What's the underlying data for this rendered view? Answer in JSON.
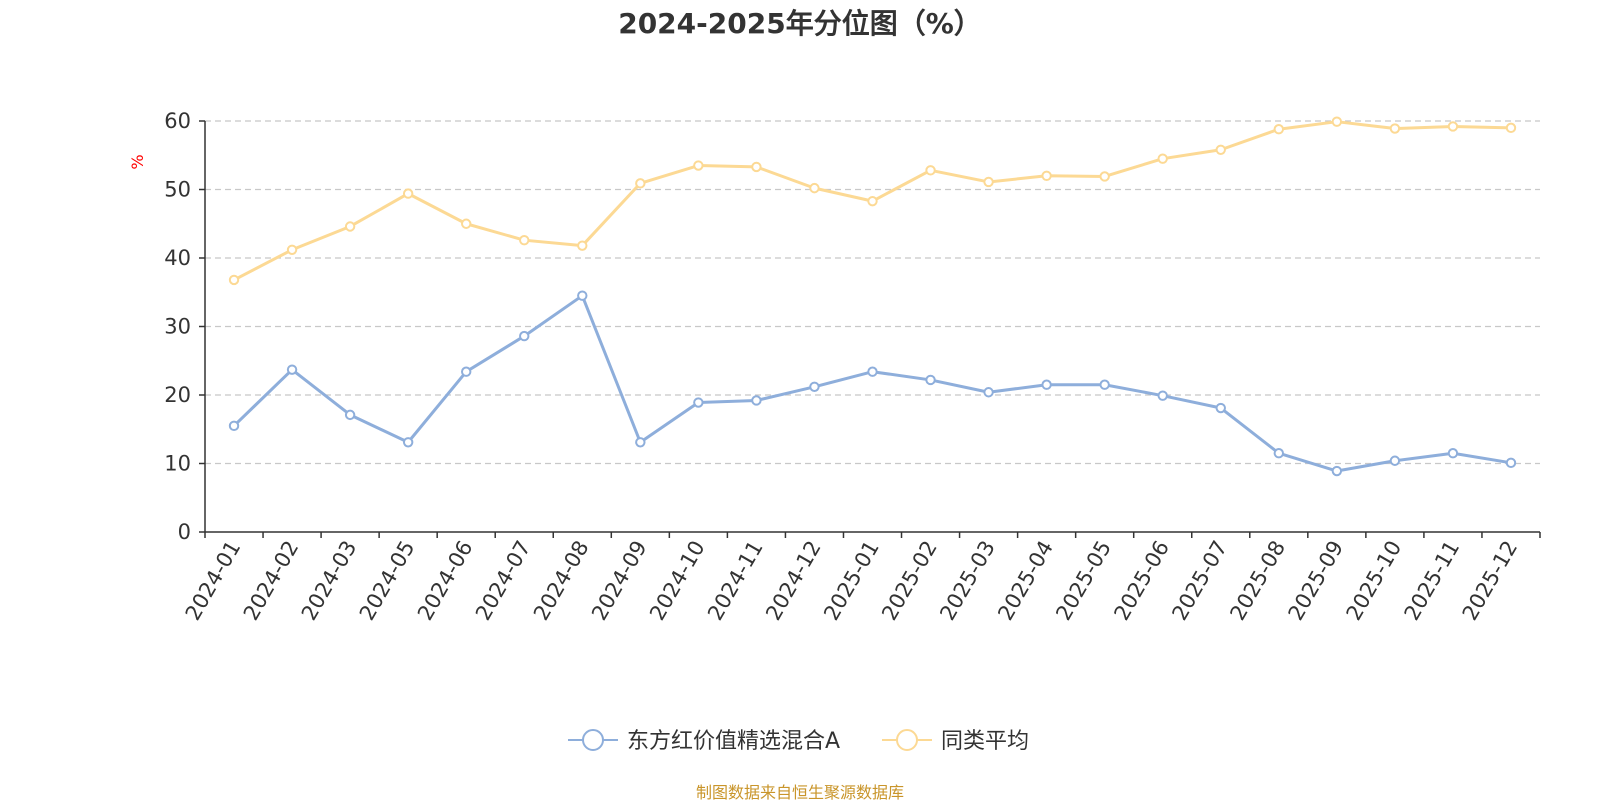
{
  "chart_data": {
    "type": "line",
    "title": "2024-2025年分位图（%）",
    "ylabel": "%",
    "xlabel": "",
    "ylim": [
      0,
      60
    ],
    "yticks": [
      0,
      10,
      20,
      30,
      40,
      50,
      60
    ],
    "grid": true,
    "legend_position": "bottom-center",
    "categories": [
      "2024-01",
      "2024-02",
      "2024-03",
      "2024-05",
      "2024-06",
      "2024-07",
      "2024-08",
      "2024-09",
      "2024-10",
      "2024-11",
      "2024-12",
      "2025-01",
      "2025-02",
      "2025-03",
      "2025-04",
      "2025-05",
      "2025-06",
      "2025-07",
      "2025-08",
      "2025-09",
      "2025-10",
      "2025-11",
      "2025-12"
    ],
    "series": [
      {
        "name": "东方红价值精选混合A",
        "color": "#8eaedb",
        "values": [
          15.5,
          23.7,
          17.1,
          13.1,
          23.4,
          28.6,
          34.5,
          13.1,
          18.9,
          19.2,
          21.2,
          23.4,
          22.2,
          20.4,
          21.5,
          21.5,
          19.9,
          18.1,
          11.5,
          8.9,
          10.4,
          11.5,
          10.1
        ]
      },
      {
        "name": "同类平均",
        "color": "#fcd994",
        "values": [
          36.8,
          41.2,
          44.6,
          49.4,
          45.0,
          42.6,
          41.8,
          50.9,
          53.5,
          53.3,
          50.2,
          48.3,
          52.8,
          51.1,
          52.0,
          51.9,
          54.5,
          55.8,
          58.8,
          59.9,
          58.9,
          59.2,
          59.0
        ]
      }
    ]
  },
  "source_note": "制图数据来自恒生聚源数据库"
}
